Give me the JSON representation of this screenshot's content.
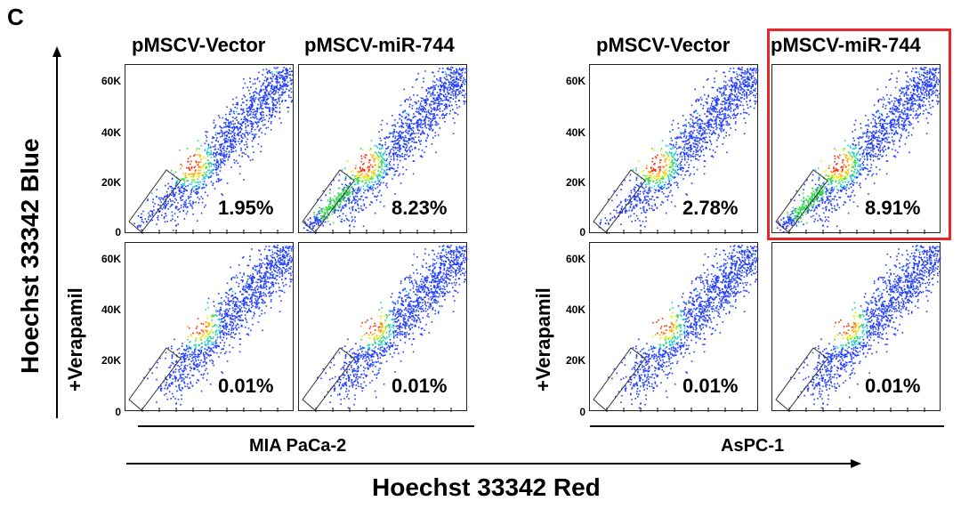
{
  "panel_label": "C",
  "y_axis_title": "Hoechst 33342 Blue",
  "x_axis_title": "Hoechst 33342 Red",
  "column_titles": [
    "pMSCV-Vector",
    "pMSCV-miR-744",
    "pMSCV-Vector",
    "pMSCV-miR-744"
  ],
  "row_label_verapamil": "+Verapamil",
  "cell_lines": [
    "MIA PaCa-2",
    "AsPC-1"
  ],
  "y_ticks": [
    "60K",
    "40K",
    "20K",
    "0"
  ],
  "highlight_color": "#e8262a",
  "chart_data": [
    {
      "type": "scatter",
      "cell_line": "MIA PaCa-2",
      "condition": "pMSCV-Vector",
      "treatment": "none",
      "side_population_percent": "1.95%",
      "ylim": [
        0,
        65000
      ],
      "yticks": [
        0,
        20000,
        40000,
        60000
      ]
    },
    {
      "type": "scatter",
      "cell_line": "MIA PaCa-2",
      "condition": "pMSCV-miR-744",
      "treatment": "none",
      "side_population_percent": "8.23%",
      "ylim": [
        0,
        65000
      ],
      "yticks": [
        0,
        20000,
        40000,
        60000
      ]
    },
    {
      "type": "scatter",
      "cell_line": "AsPC-1",
      "condition": "pMSCV-Vector",
      "treatment": "none",
      "side_population_percent": "2.78%",
      "ylim": [
        0,
        65000
      ],
      "yticks": [
        0,
        20000,
        40000,
        60000
      ]
    },
    {
      "type": "scatter",
      "cell_line": "AsPC-1",
      "condition": "pMSCV-miR-744",
      "treatment": "none",
      "side_population_percent": "8.91%",
      "ylim": [
        0,
        65000
      ],
      "yticks": [
        0,
        20000,
        40000,
        60000
      ],
      "highlighted": true
    },
    {
      "type": "scatter",
      "cell_line": "MIA PaCa-2",
      "condition": "pMSCV-Vector",
      "treatment": "+Verapamil",
      "side_population_percent": "0.01%",
      "ylim": [
        0,
        65000
      ],
      "yticks": [
        0,
        20000,
        40000,
        60000
      ]
    },
    {
      "type": "scatter",
      "cell_line": "MIA PaCa-2",
      "condition": "pMSCV-miR-744",
      "treatment": "+Verapamil",
      "side_population_percent": "0.01%",
      "ylim": [
        0,
        65000
      ],
      "yticks": [
        0,
        20000,
        40000,
        60000
      ]
    },
    {
      "type": "scatter",
      "cell_line": "AsPC-1",
      "condition": "pMSCV-Vector",
      "treatment": "+Verapamil",
      "side_population_percent": "0.01%",
      "ylim": [
        0,
        65000
      ],
      "yticks": [
        0,
        20000,
        40000,
        60000
      ]
    },
    {
      "type": "scatter",
      "cell_line": "AsPC-1",
      "condition": "pMSCV-miR-744",
      "treatment": "+Verapamil",
      "side_population_percent": "0.01%",
      "ylim": [
        0,
        65000
      ],
      "yticks": [
        0,
        20000,
        40000,
        60000
      ]
    }
  ]
}
